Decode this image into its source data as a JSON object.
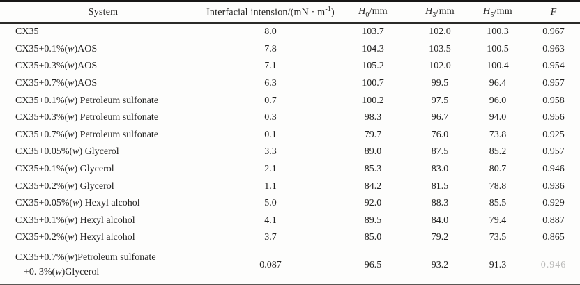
{
  "table": {
    "columns": [
      {
        "id": "system",
        "label": "System"
      },
      {
        "id": "ift",
        "label": "Interfacial intension/(mN · m^{-1})"
      },
      {
        "id": "h0",
        "label": "*H*_{0}/mm"
      },
      {
        "id": "h3",
        "label": "*H*_{3}/mm"
      },
      {
        "id": "h5",
        "label": "*H*_{5}/mm"
      },
      {
        "id": "f",
        "label": "*F*"
      }
    ],
    "rows": [
      {
        "system": [
          "CX35"
        ],
        "ift": "8.0",
        "h0": "103.7",
        "h3": "102.0",
        "h5": "100.3",
        "f": "0.967",
        "f_faded": false
      },
      {
        "system": [
          "CX35+0.1%(*w*)AOS"
        ],
        "ift": "7.8",
        "h0": "104.3",
        "h3": "103.5",
        "h5": "100.5",
        "f": "0.963",
        "f_faded": false
      },
      {
        "system": [
          "CX35+0.3%(*w*)AOS"
        ],
        "ift": "7.1",
        "h0": "105.2",
        "h3": "102.0",
        "h5": "100.4",
        "f": "0.954",
        "f_faded": false
      },
      {
        "system": [
          "CX35+0.7%(*w*)AOS"
        ],
        "ift": "6.3",
        "h0": "100.7",
        "h3": "99.5",
        "h5": "96.4",
        "f": "0.957",
        "f_faded": false
      },
      {
        "system": [
          "CX35+0.1%(*w*) Petroleum sulfonate"
        ],
        "ift": "0.7",
        "h0": "100.2",
        "h3": "97.5",
        "h5": "96.0",
        "f": "0.958",
        "f_faded": false
      },
      {
        "system": [
          "CX35+0.3%(*w*) Petroleum sulfonate"
        ],
        "ift": "0.3",
        "h0": "98.3",
        "h3": "96.7",
        "h5": "94.0",
        "f": "0.956",
        "f_faded": false
      },
      {
        "system": [
          "CX35+0.7%(*w*) Petroleum sulfonate"
        ],
        "ift": "0.1",
        "h0": "79.7",
        "h3": "76.0",
        "h5": "73.8",
        "f": "0.925",
        "f_faded": false
      },
      {
        "system": [
          "CX35+0.05%(*w*) Glycerol"
        ],
        "ift": "3.3",
        "h0": "89.0",
        "h3": "87.5",
        "h5": "85.2",
        "f": "0.957",
        "f_faded": false
      },
      {
        "system": [
          "CX35+0.1%(*w*) Glycerol"
        ],
        "ift": "2.1",
        "h0": "85.3",
        "h3": "83.0",
        "h5": "80.7",
        "f": "0.946",
        "f_faded": false
      },
      {
        "system": [
          "CX35+0.2%(*w*) Glycerol"
        ],
        "ift": "1.1",
        "h0": "84.2",
        "h3": "81.5",
        "h5": "78.8",
        "f": "0.936",
        "f_faded": false
      },
      {
        "system": [
          "CX35+0.05%(*w*) Hexyl alcohol"
        ],
        "ift": "5.0",
        "h0": "92.0",
        "h3": "88.3",
        "h5": "85.5",
        "f": "0.929",
        "f_faded": false
      },
      {
        "system": [
          "CX35+0.1%(*w*) Hexyl alcohol"
        ],
        "ift": "4.1",
        "h0": "89.5",
        "h3": "84.0",
        "h5": "79.4",
        "f": "0.887",
        "f_faded": false
      },
      {
        "system": [
          "CX35+0.2%(*w*) Hexyl alcohol"
        ],
        "ift": "3.7",
        "h0": "85.0",
        "h3": "79.2",
        "h5": "73.5",
        "f": "0.865",
        "f_faded": false
      },
      {
        "system": [
          "CX35+0.7%(*w*)Petroleum sulfonate",
          "+0. 3%(*w*)Glycerol"
        ],
        "ift": "0.087",
        "h0": "96.5",
        "h3": "93.2",
        "h5": "91.3",
        "f": "0.946",
        "f_faded": true
      }
    ]
  }
}
